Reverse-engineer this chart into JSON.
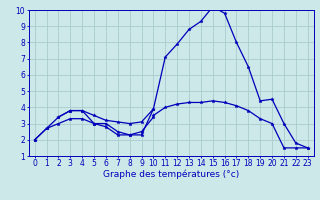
{
  "bg_color": "#cce8e8",
  "grid_color": "#aacccc",
  "line_color": "#0000bb",
  "xlabel": "Graphe des températures (°c)",
  "xlim": [
    -0.5,
    23.5
  ],
  "ylim": [
    1,
    10
  ],
  "yticks": [
    1,
    2,
    3,
    4,
    5,
    6,
    7,
    8,
    9,
    10
  ],
  "xticks": [
    0,
    1,
    2,
    3,
    4,
    5,
    6,
    7,
    8,
    9,
    10,
    11,
    12,
    13,
    14,
    15,
    16,
    17,
    18,
    19,
    20,
    21,
    22,
    23
  ],
  "series": {
    "temp_obs": [
      2.0,
      2.7,
      3.4,
      3.8,
      3.8,
      3.0,
      3.0,
      2.5,
      2.3,
      2.3,
      3.9,
      7.1,
      7.9,
      8.8,
      9.3,
      10.2,
      9.8,
      8.0,
      6.5,
      4.4,
      4.5,
      3.0,
      1.8,
      1.5
    ],
    "temp_max": [
      null,
      null,
      3.4,
      3.8,
      3.8,
      3.5,
      3.2,
      3.1,
      3.0,
      3.1,
      3.9,
      null,
      null,
      null,
      null,
      null,
      null,
      null,
      null,
      null,
      null,
      null,
      null,
      null
    ],
    "temp_min": [
      2.0,
      2.7,
      3.0,
      3.3,
      3.3,
      3.0,
      2.8,
      2.3,
      2.3,
      2.5,
      3.4,
      null,
      null,
      null,
      null,
      null,
      null,
      null,
      null,
      null,
      null,
      null,
      null,
      null
    ],
    "temp_avg": [
      null,
      null,
      null,
      null,
      null,
      null,
      null,
      null,
      null,
      null,
      3.5,
      4.0,
      4.2,
      4.3,
      4.3,
      4.4,
      4.3,
      4.1,
      3.8,
      3.3,
      3.0,
      1.5,
      1.5,
      1.5
    ]
  },
  "tick_fontsize": 5.5,
  "xlabel_fontsize": 6.5,
  "lw": 0.9,
  "ms": 2.5
}
